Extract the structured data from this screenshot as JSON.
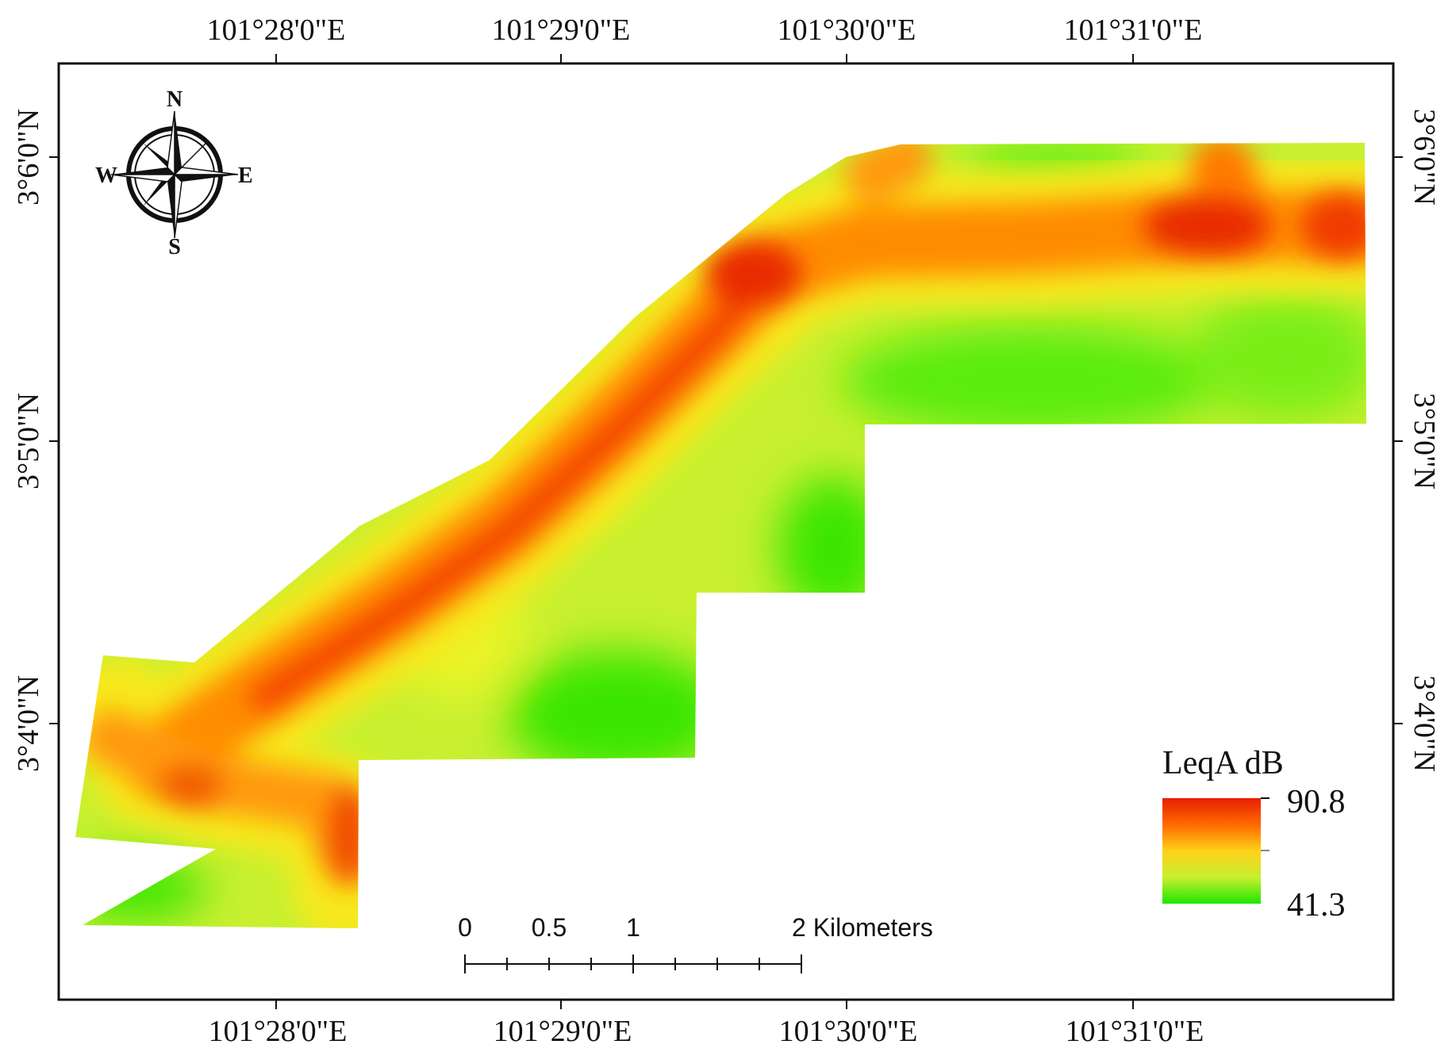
{
  "map": {
    "top_ticks": [
      "101°28'0\"E",
      "101°29'0\"E",
      "101°30'0\"E",
      "101°31'0\"E"
    ],
    "bottom_ticks": [
      "101°28'0\"E",
      "101°29'0\"E",
      "101°30'0\"E",
      "101°31'0\"E"
    ],
    "left_ticks": [
      "3°6'0\"N",
      "3°5'0\"N",
      "3°4'0\"N"
    ],
    "right_ticks": [
      "3°6'0\"N",
      "3°5'0\"N",
      "3°4'0\"N"
    ],
    "north_arrow": {
      "icon": "compass-rose-icon",
      "n": "N",
      "s": "S",
      "e": "E",
      "w": "W"
    },
    "legend": {
      "title": "LeqA dB",
      "max": "90.8",
      "min": "41.3",
      "max_value": 90.8,
      "min_value": 41.3,
      "colors": [
        "#e61f00",
        "#ff6a00",
        "#ffd11a",
        "#c8f030",
        "#1fe600"
      ]
    },
    "scale_bar": {
      "labels": [
        "0",
        "0.5",
        "1",
        "2 Kilometers"
      ],
      "values_km": [
        0,
        0.5,
        1,
        2
      ]
    },
    "colors": {
      "high": "#ff2a00",
      "mid_high": "#ff8c00",
      "mid": "#f5e600",
      "mid_low": "#b6f01e",
      "low": "#2ee600"
    }
  }
}
